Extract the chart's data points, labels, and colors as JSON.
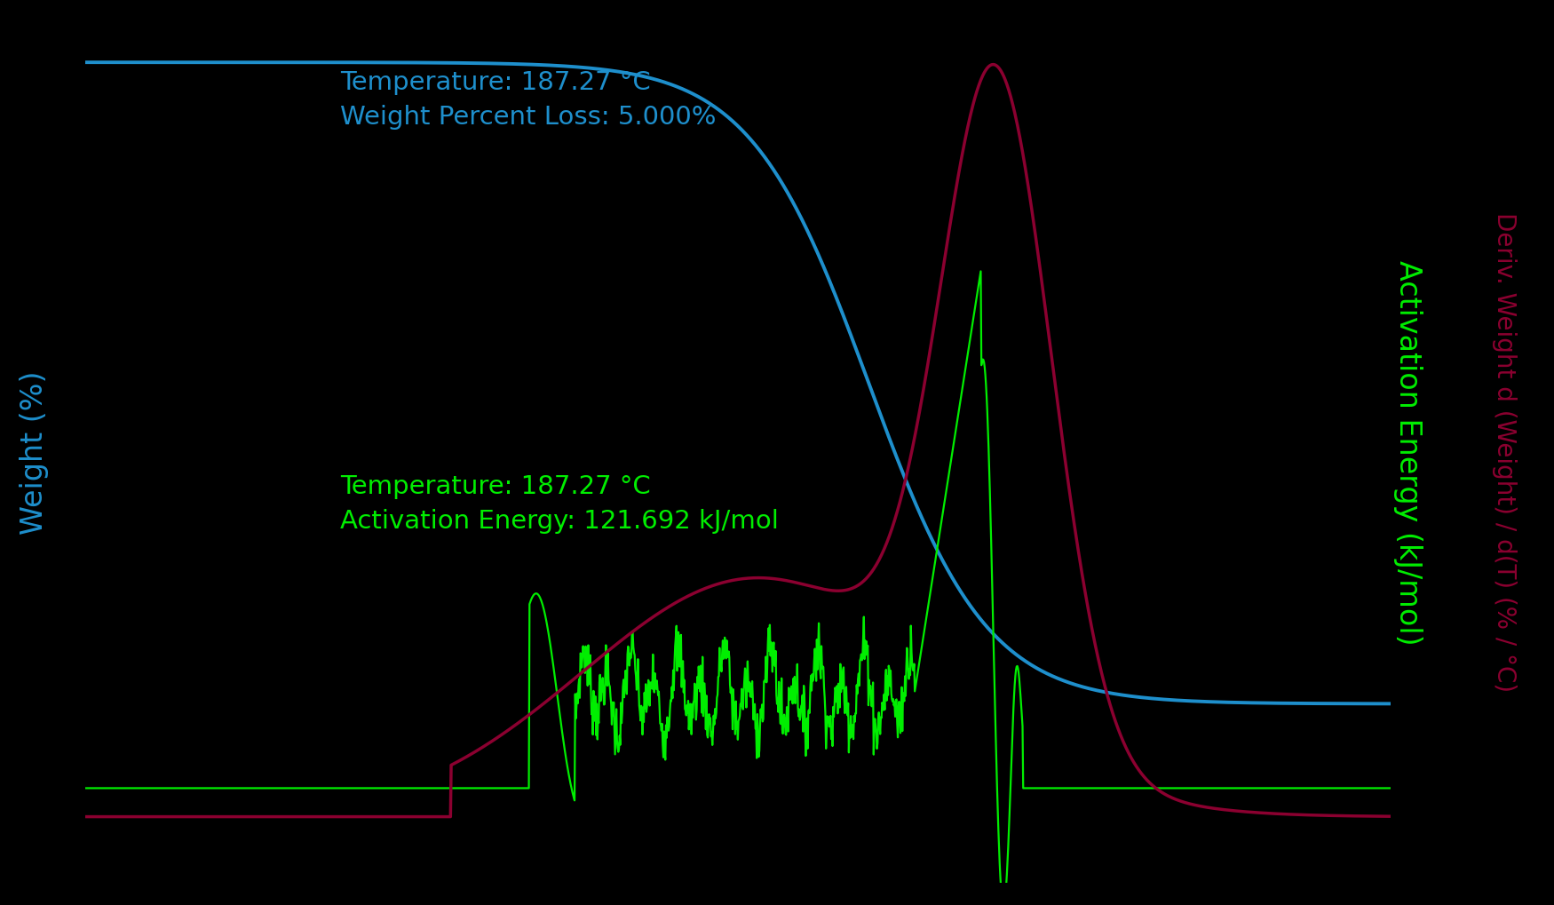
{
  "background_color": "#000000",
  "blue_color": "#1E8FCC",
  "green_color": "#00EE00",
  "red_color": "#8B0030",
  "left_ylabel": "Weight (%)",
  "right_ylabel1": "Activation Energy (kJ/mol)",
  "right_ylabel2": "Deriv. Weight d (Weight) / d(Τ) (% / °C)",
  "annotation1_line1": "Temperature: 187.27 °C",
  "annotation1_line2": "Weight Percent Loss: 5.000%",
  "annotation2_line1": "Temperature: 187.27 °C",
  "annotation2_line2": "Activation Energy: 121.692 kJ/mol",
  "left_ylabel_color": "#1E8FCC",
  "right_ylabel1_color": "#00EE00",
  "right_ylabel2_color": "#8B0030"
}
